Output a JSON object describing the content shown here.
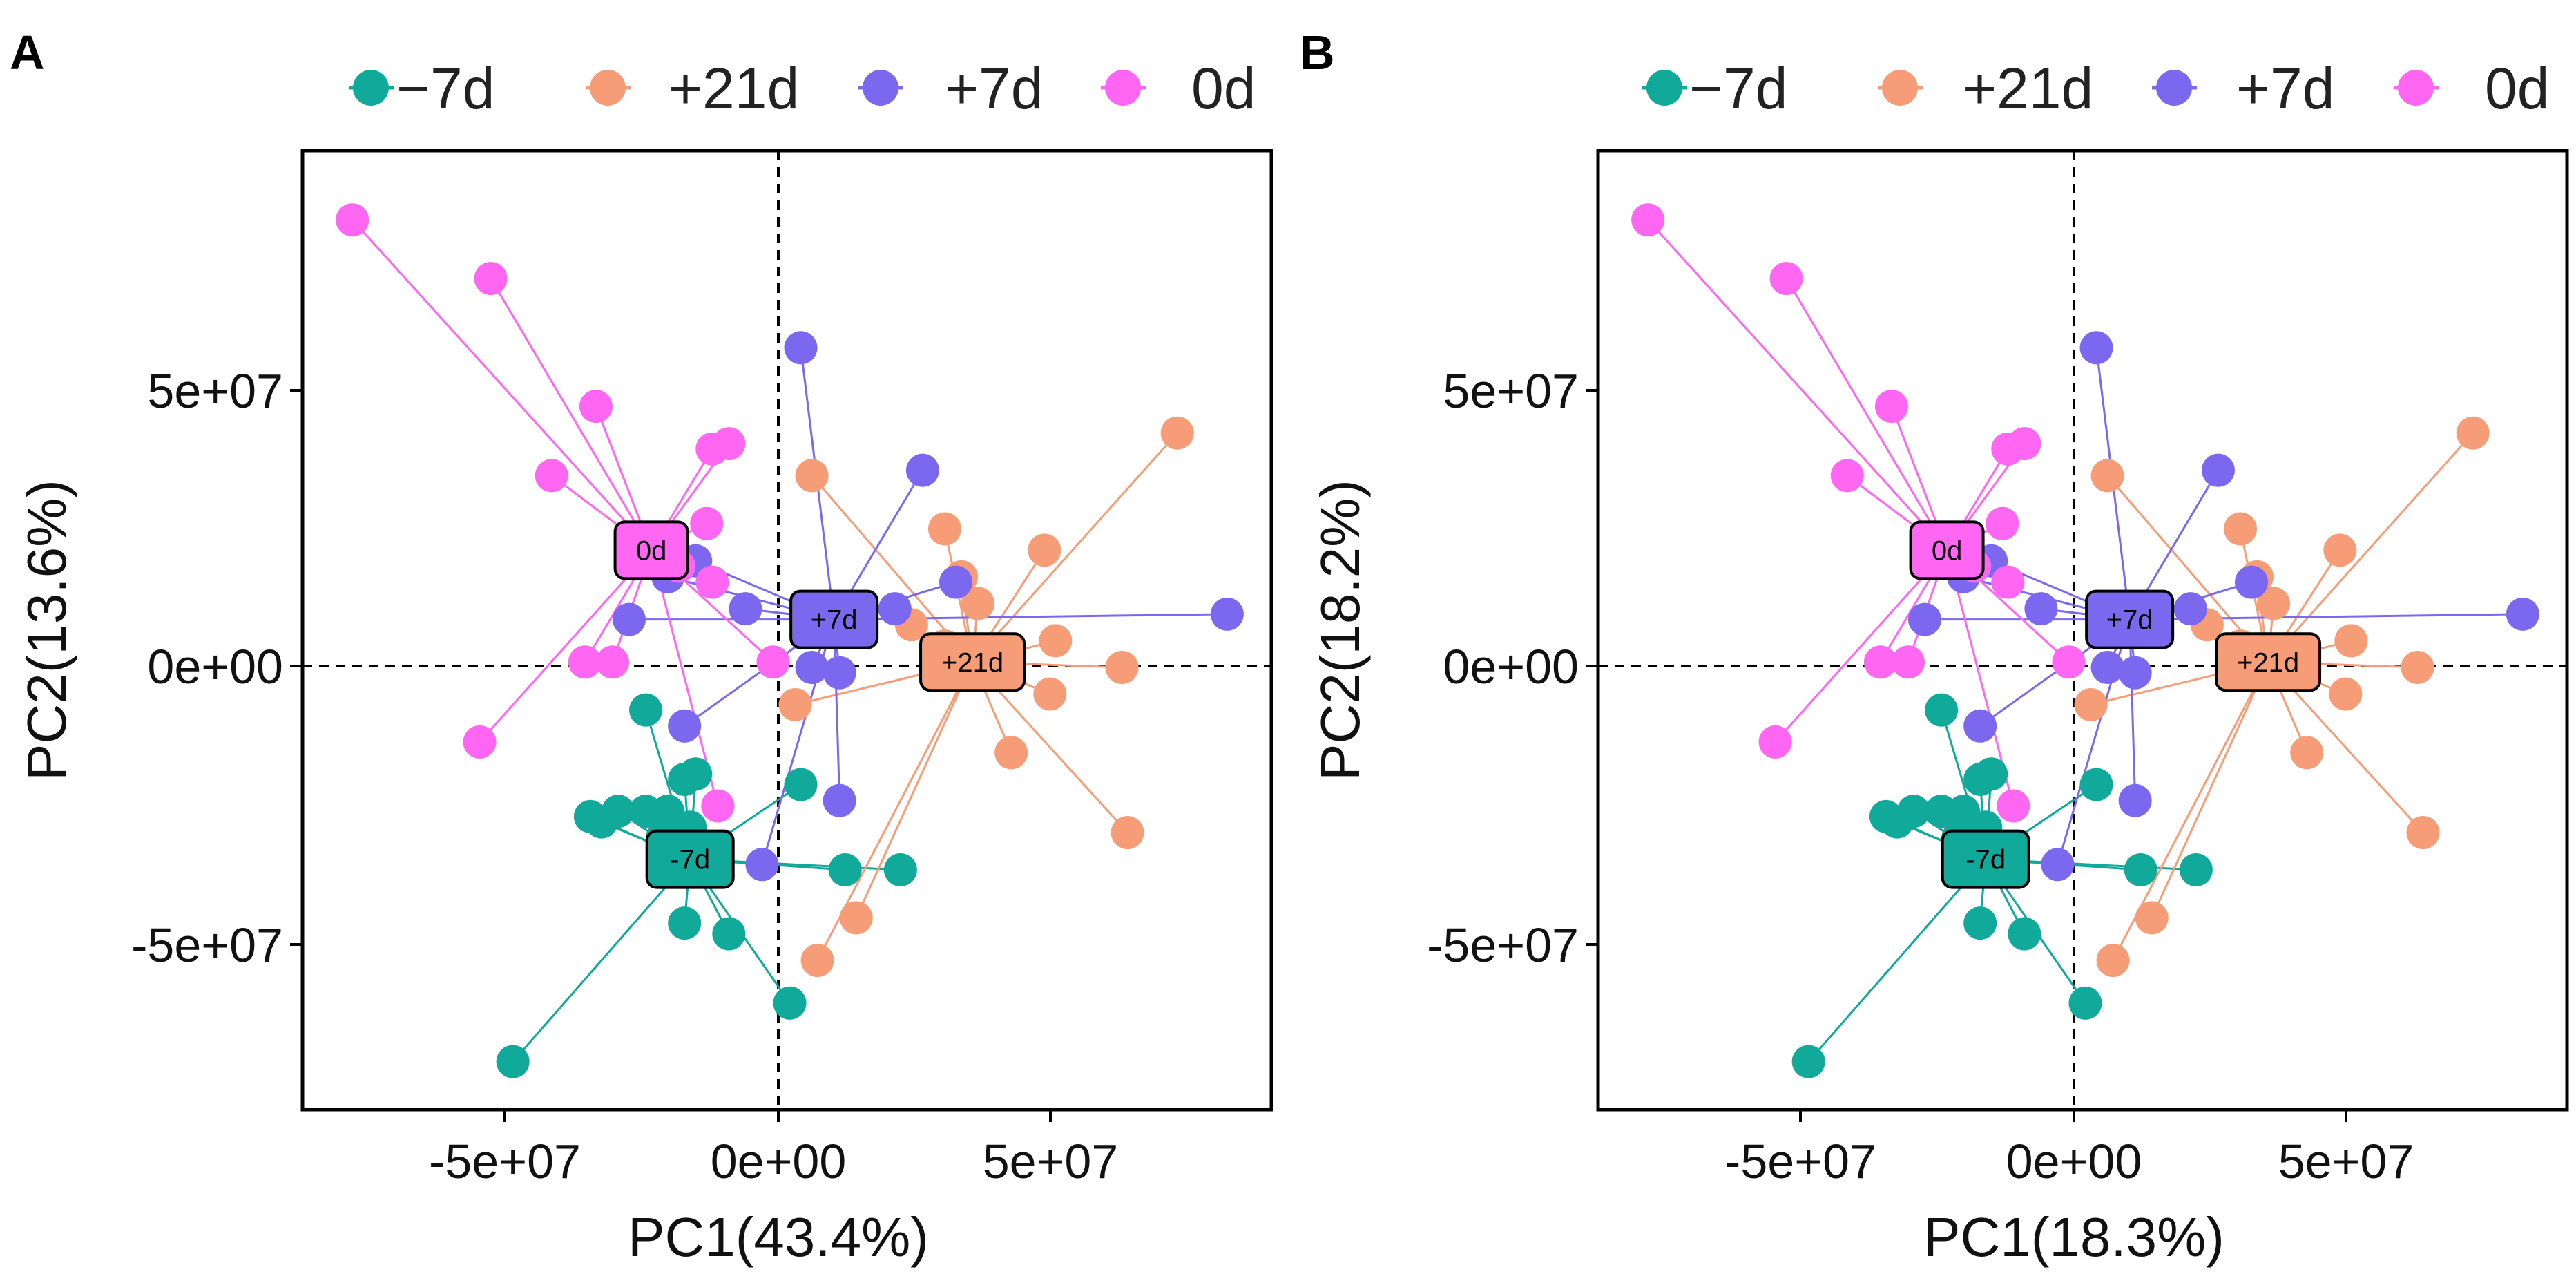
{
  "colors": {
    "-7d": "#10A99A",
    "+21d": "#F69D78",
    "+7d": "#7B68EE",
    "0d": "#FF66F2"
  },
  "chart_data": [
    {
      "type": "scatter",
      "panel": "A",
      "xlabel": "PC1(43.4%)",
      "ylabel": "PC2(13.6%)",
      "xlim": [
        -88000000.0,
        87000000.0
      ],
      "ylim": [
        -82000000.0,
        98000000.0
      ],
      "xticks": [
        {
          "value": -50000000.0,
          "label": "-5e+07"
        },
        {
          "value": 0,
          "label": "0e+00"
        },
        {
          "value": 50000000.0,
          "label": "5e+07"
        }
      ],
      "yticks": [
        {
          "value": 50000000.0,
          "label": "5e+07"
        },
        {
          "value": 0,
          "label": "0e+00"
        },
        {
          "value": -50000000.0,
          "label": "-5e+07"
        }
      ],
      "reference_lines": {
        "x": 0,
        "y": 0
      },
      "legend": {
        "position": "top",
        "entries": [
          "−7d",
          "+21d",
          "+7d",
          "0d"
        ]
      },
      "series": [
        {
          "name": "-7d",
          "label": "-7d",
          "centroid": [
            -18000000.0,
            -35000000.0
          ],
          "points": [
            [
              -50000000.0,
              -73000000.0
            ],
            [
              -26000000.0,
              -26000000.0
            ],
            [
              -23000000.0,
              -31000000.0
            ],
            [
              -22000000.0,
              -26000000.0
            ],
            [
              -19000000.0,
              -20000000.0
            ],
            [
              -17000000.0,
              -19000000.0
            ],
            [
              -26000000.0,
              -7000000.0
            ],
            [
              -31000000.0,
              -26000000.0
            ],
            [
              -36000000.0,
              -27000000.0
            ],
            [
              -34000000.0,
              -28000000.0
            ],
            [
              -19000000.0,
              -47000000.0
            ],
            [
              -11000000.0,
              -49000000.0
            ],
            [
              0,
              -62000000.0
            ],
            [
              10000000.0,
              -37000000.0
            ],
            [
              20000000.0,
              -37000000.0
            ],
            [
              2000000.0,
              -21000000.0
            ],
            [
              -18000000.0,
              -29000000.0
            ]
          ]
        },
        {
          "name": "+21d",
          "label": "+21d",
          "centroid": [
            33000000.0,
            2000000.0
          ],
          "points": [
            [
              70000000.0,
              45000000.0
            ],
            [
              46000000.0,
              23000000.0
            ],
            [
              28000000.0,
              27000000.0
            ],
            [
              31000000.0,
              18000000.0
            ],
            [
              34000000.0,
              13000000.0
            ],
            [
              48000000.0,
              6000000.0
            ],
            [
              60000000.0,
              1000000.0
            ],
            [
              47000000.0,
              -4000000.0
            ],
            [
              40000000.0,
              -15000000.0
            ],
            [
              61000000.0,
              -30000000.0
            ],
            [
              4000000.0,
              37000000.0
            ],
            [
              22000000.0,
              9000000.0
            ],
            [
              1000000.0,
              -6000000.0
            ],
            [
              12000000.0,
              -46000000.0
            ],
            [
              5000000.0,
              -54000000.0
            ],
            [
              28000000.0,
              5000000.0
            ]
          ]
        },
        {
          "name": "+7d",
          "label": "+7d",
          "centroid": [
            8000000.0,
            10000000.0
          ],
          "points": [
            [
              2000000.0,
              61000000.0
            ],
            [
              24000000.0,
              38000000.0
            ],
            [
              79000000.0,
              11000000.0
            ],
            [
              30000000.0,
              17000000.0
            ],
            [
              -8000000.0,
              12000000.0
            ],
            [
              -29000000.0,
              10000000.0
            ],
            [
              -17000000.0,
              21000000.0
            ],
            [
              -22000000.0,
              18000000.0
            ],
            [
              -19000000.0,
              -10000000.0
            ],
            [
              4000000.0,
              1000000.0
            ],
            [
              9000000.0,
              0
            ],
            [
              9000000.0,
              -24000000.0
            ],
            [
              -5000000.0,
              -36000000.0
            ],
            [
              19000000.0,
              12000000.0
            ]
          ]
        },
        {
          "name": "0d",
          "label": "0d",
          "centroid": [
            -25000000.0,
            23000000.0
          ],
          "points": [
            [
              -79000000.0,
              85000000.0
            ],
            [
              -54000000.0,
              74000000.0
            ],
            [
              -35000000.0,
              50000000.0
            ],
            [
              -43000000.0,
              37000000.0
            ],
            [
              -14000000.0,
              42000000.0
            ],
            [
              -11000000.0,
              43000000.0
            ],
            [
              -15000000.0,
              28000000.0
            ],
            [
              -14000000.0,
              17000000.0
            ],
            [
              -37000000.0,
              2000000.0
            ],
            [
              -32000000.0,
              2000000.0
            ],
            [
              -56000000.0,
              -13000000.0
            ],
            [
              -13000000.0,
              -25000000.0
            ],
            [
              -3000000.0,
              2000000.0
            ],
            [
              -20000000.0,
              20000000.0
            ]
          ]
        }
      ]
    },
    {
      "type": "scatter",
      "panel": "B",
      "xlabel": "PC1(18.3%)",
      "ylabel": "PC2(18.2%)",
      "xlim": [
        -88000000.0,
        87000000.0
      ],
      "ylim": [
        -82000000.0,
        98000000.0
      ],
      "xticks": [
        {
          "value": -50000000.0,
          "label": "-5e+07"
        },
        {
          "value": 0,
          "label": "0e+00"
        },
        {
          "value": 50000000.0,
          "label": "5e+07"
        }
      ],
      "yticks": [
        {
          "value": 50000000.0,
          "label": "5e+07"
        },
        {
          "value": 0,
          "label": "0e+00"
        },
        {
          "value": -50000000.0,
          "label": "-5e+07"
        }
      ],
      "reference_lines": {
        "x": 0,
        "y": 0
      },
      "legend": {
        "position": "top",
        "entries": [
          "−7d",
          "+21d",
          "+7d",
          "0d"
        ]
      },
      "series": [
        {
          "name": "-7d",
          "label": "-7d",
          "centroid": [
            -18000000.0,
            -35000000.0
          ],
          "points": [
            [
              -50000000.0,
              -73000000.0
            ],
            [
              -26000000.0,
              -26000000.0
            ],
            [
              -23000000.0,
              -31000000.0
            ],
            [
              -22000000.0,
              -26000000.0
            ],
            [
              -19000000.0,
              -20000000.0
            ],
            [
              -17000000.0,
              -19000000.0
            ],
            [
              -26000000.0,
              -7000000.0
            ],
            [
              -31000000.0,
              -26000000.0
            ],
            [
              -36000000.0,
              -27000000.0
            ],
            [
              -34000000.0,
              -28000000.0
            ],
            [
              -19000000.0,
              -47000000.0
            ],
            [
              -11000000.0,
              -49000000.0
            ],
            [
              0,
              -62000000.0
            ],
            [
              10000000.0,
              -37000000.0
            ],
            [
              20000000.0,
              -37000000.0
            ],
            [
              2000000.0,
              -21000000.0
            ],
            [
              -18000000.0,
              -29000000.0
            ]
          ]
        },
        {
          "name": "+21d",
          "label": "+21d",
          "centroid": [
            33000000.0,
            2000000.0
          ],
          "points": [
            [
              70000000.0,
              45000000.0
            ],
            [
              46000000.0,
              23000000.0
            ],
            [
              28000000.0,
              27000000.0
            ],
            [
              31000000.0,
              18000000.0
            ],
            [
              34000000.0,
              13000000.0
            ],
            [
              48000000.0,
              6000000.0
            ],
            [
              60000000.0,
              1000000.0
            ],
            [
              47000000.0,
              -4000000.0
            ],
            [
              40000000.0,
              -15000000.0
            ],
            [
              61000000.0,
              -30000000.0
            ],
            [
              4000000.0,
              37000000.0
            ],
            [
              22000000.0,
              9000000.0
            ],
            [
              1000000.0,
              -6000000.0
            ],
            [
              12000000.0,
              -46000000.0
            ],
            [
              5000000.0,
              -54000000.0
            ],
            [
              28000000.0,
              5000000.0
            ]
          ]
        },
        {
          "name": "+7d",
          "label": "+7d",
          "centroid": [
            8000000.0,
            10000000.0
          ],
          "points": [
            [
              2000000.0,
              61000000.0
            ],
            [
              24000000.0,
              38000000.0
            ],
            [
              79000000.0,
              11000000.0
            ],
            [
              30000000.0,
              17000000.0
            ],
            [
              -8000000.0,
              12000000.0
            ],
            [
              -29000000.0,
              10000000.0
            ],
            [
              -17000000.0,
              21000000.0
            ],
            [
              -22000000.0,
              18000000.0
            ],
            [
              -19000000.0,
              -10000000.0
            ],
            [
              4000000.0,
              1000000.0
            ],
            [
              9000000.0,
              0
            ],
            [
              9000000.0,
              -24000000.0
            ],
            [
              -5000000.0,
              -36000000.0
            ],
            [
              19000000.0,
              12000000.0
            ]
          ]
        },
        {
          "name": "0d",
          "label": "0d",
          "centroid": [
            -25000000.0,
            23000000.0
          ],
          "points": [
            [
              -79000000.0,
              85000000.0
            ],
            [
              -54000000.0,
              74000000.0
            ],
            [
              -35000000.0,
              50000000.0
            ],
            [
              -43000000.0,
              37000000.0
            ],
            [
              -14000000.0,
              42000000.0
            ],
            [
              -11000000.0,
              43000000.0
            ],
            [
              -15000000.0,
              28000000.0
            ],
            [
              -14000000.0,
              17000000.0
            ],
            [
              -37000000.0,
              2000000.0
            ],
            [
              -32000000.0,
              2000000.0
            ],
            [
              -56000000.0,
              -13000000.0
            ],
            [
              -13000000.0,
              -25000000.0
            ],
            [
              -3000000.0,
              2000000.0
            ],
            [
              -20000000.0,
              20000000.0
            ]
          ]
        }
      ]
    }
  ]
}
